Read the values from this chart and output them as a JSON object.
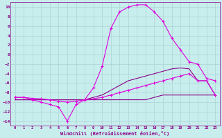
{
  "xlabel": "Windchill (Refroidissement éolien,°C)",
  "xlim": [
    -0.5,
    23.5
  ],
  "ylim": [
    -15,
    11
  ],
  "yticks": [
    -14,
    -12,
    -10,
    -8,
    -6,
    -4,
    -2,
    0,
    2,
    4,
    6,
    8,
    10
  ],
  "xticks": [
    0,
    1,
    2,
    3,
    4,
    5,
    6,
    7,
    8,
    9,
    10,
    11,
    12,
    13,
    14,
    15,
    16,
    17,
    18,
    19,
    20,
    21,
    22,
    23
  ],
  "background_color": "#c8eded",
  "grid_color": "#aad4d4",
  "line_magenta": "#dd00dd",
  "line_purple": "#880088",
  "series1_x": [
    0,
    1,
    2,
    3,
    4,
    5,
    6,
    7,
    8,
    9,
    10,
    11,
    12,
    13,
    14,
    15,
    16,
    17,
    18,
    19,
    20,
    21,
    22,
    23
  ],
  "series1_y": [
    -9.0,
    -9.0,
    -9.5,
    -10.0,
    -10.5,
    -11.0,
    -14.0,
    -10.5,
    -9.5,
    -7.0,
    -2.5,
    5.5,
    9.0,
    10.0,
    10.5,
    10.5,
    9.0,
    7.0,
    3.5,
    1.0,
    -1.5,
    -2.0,
    -5.0,
    -5.5
  ],
  "series2_x": [
    0,
    1,
    2,
    3,
    4,
    5,
    6,
    7,
    8,
    9,
    10,
    11,
    12,
    13,
    14,
    15,
    16,
    17,
    18,
    19,
    20,
    21,
    22,
    23
  ],
  "series2_y": [
    -9.0,
    -9.0,
    -9.2,
    -9.3,
    -9.5,
    -9.8,
    -10.0,
    -9.8,
    -9.5,
    -9.3,
    -9.0,
    -8.5,
    -8.0,
    -7.5,
    -7.0,
    -6.5,
    -6.0,
    -5.5,
    -5.0,
    -4.5,
    -4.0,
    -5.5,
    -5.5,
    -8.5
  ],
  "series3_x": [
    0,
    1,
    2,
    3,
    4,
    5,
    6,
    7,
    8,
    9,
    10,
    11,
    12,
    13,
    14,
    15,
    16,
    17,
    18,
    19,
    20,
    21,
    22,
    23
  ],
  "series3_y": [
    -9.5,
    -9.5,
    -9.5,
    -9.5,
    -9.5,
    -9.5,
    -9.5,
    -9.5,
    -9.5,
    -9.0,
    -8.5,
    -7.5,
    -6.5,
    -5.5,
    -5.0,
    -4.5,
    -4.0,
    -3.5,
    -3.0,
    -2.8,
    -3.0,
    -5.5,
    -5.5,
    -8.5
  ],
  "series4_x": [
    0,
    1,
    2,
    3,
    4,
    5,
    6,
    7,
    8,
    9,
    10,
    11,
    12,
    13,
    14,
    15,
    16,
    17,
    18,
    19,
    20,
    21,
    22,
    23
  ],
  "series4_y": [
    -9.5,
    -9.5,
    -9.5,
    -9.5,
    -9.5,
    -9.5,
    -9.5,
    -9.5,
    -9.5,
    -9.5,
    -9.5,
    -9.5,
    -9.5,
    -9.5,
    -9.5,
    -9.5,
    -9.0,
    -8.5,
    -8.5,
    -8.5,
    -8.5,
    -8.5,
    -8.5,
    -8.5
  ]
}
